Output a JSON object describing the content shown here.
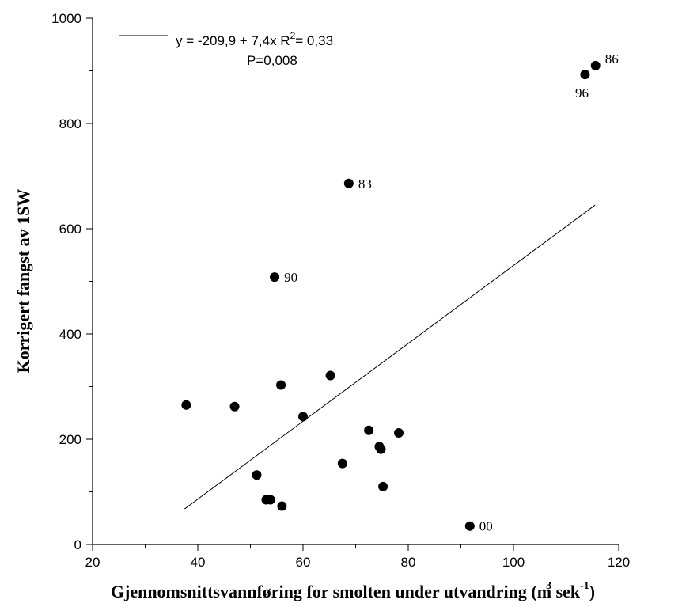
{
  "chart_data": {
    "type": "scatter",
    "title": "",
    "xlabel": "Gjennomsnittsvannføring for smolten under utvandring (m³ sek⁻¹)",
    "xlabel_main": "Gjennomsnittsvannføring for smolten under utvandring (m",
    "xlabel_sup1": "3",
    "xlabel_mid": " sek",
    "xlabel_sup2": "-1",
    "xlabel_end": ")",
    "ylabel": "Korrigert fangst av 1SW",
    "xlim": [
      20,
      120
    ],
    "ylim": [
      0,
      1000
    ],
    "xticks": [
      "20",
      "40",
      "60",
      "80",
      "100",
      "120"
    ],
    "yticks": [
      "0",
      "200",
      "400",
      "600",
      "800",
      "1000"
    ],
    "xtick_values": [
      20,
      40,
      60,
      80,
      100,
      120
    ],
    "ytick_values": [
      0,
      200,
      400,
      600,
      800,
      1000
    ],
    "grid": false,
    "legend": {
      "placement": "top-left",
      "equation_pre": "y = -209,9 + 7,4x   R",
      "equation_sup": "2",
      "equation_post": "= 0,33",
      "pvalue": "P=0,008"
    },
    "regression": {
      "intercept": -209.9,
      "slope": 7.4,
      "x_start": 37.5,
      "x_end": 115.5
    },
    "points": [
      {
        "x": 37.8,
        "y": 265,
        "label": ""
      },
      {
        "x": 47.0,
        "y": 262,
        "label": ""
      },
      {
        "x": 51.2,
        "y": 132,
        "label": ""
      },
      {
        "x": 53.0,
        "y": 85,
        "label": ""
      },
      {
        "x": 53.8,
        "y": 85,
        "label": ""
      },
      {
        "x": 54.6,
        "y": 508,
        "label": "90"
      },
      {
        "x": 55.8,
        "y": 303,
        "label": ""
      },
      {
        "x": 56.0,
        "y": 73,
        "label": ""
      },
      {
        "x": 60.0,
        "y": 243,
        "label": ""
      },
      {
        "x": 65.2,
        "y": 321,
        "label": ""
      },
      {
        "x": 67.5,
        "y": 154,
        "label": ""
      },
      {
        "x": 68.7,
        "y": 686,
        "label": "83"
      },
      {
        "x": 72.5,
        "y": 217,
        "label": ""
      },
      {
        "x": 74.5,
        "y": 186,
        "label": ""
      },
      {
        "x": 74.8,
        "y": 181,
        "label": ""
      },
      {
        "x": 75.2,
        "y": 110,
        "label": ""
      },
      {
        "x": 78.2,
        "y": 212,
        "label": ""
      },
      {
        "x": 91.7,
        "y": 35,
        "label": "00"
      },
      {
        "x": 113.6,
        "y": 893,
        "label": "96"
      },
      {
        "x": 115.6,
        "y": 910,
        "label": "86"
      }
    ],
    "label_positions": {
      "90": "right",
      "83": "right",
      "00": "right",
      "96": "below-left",
      "86": "right"
    }
  }
}
